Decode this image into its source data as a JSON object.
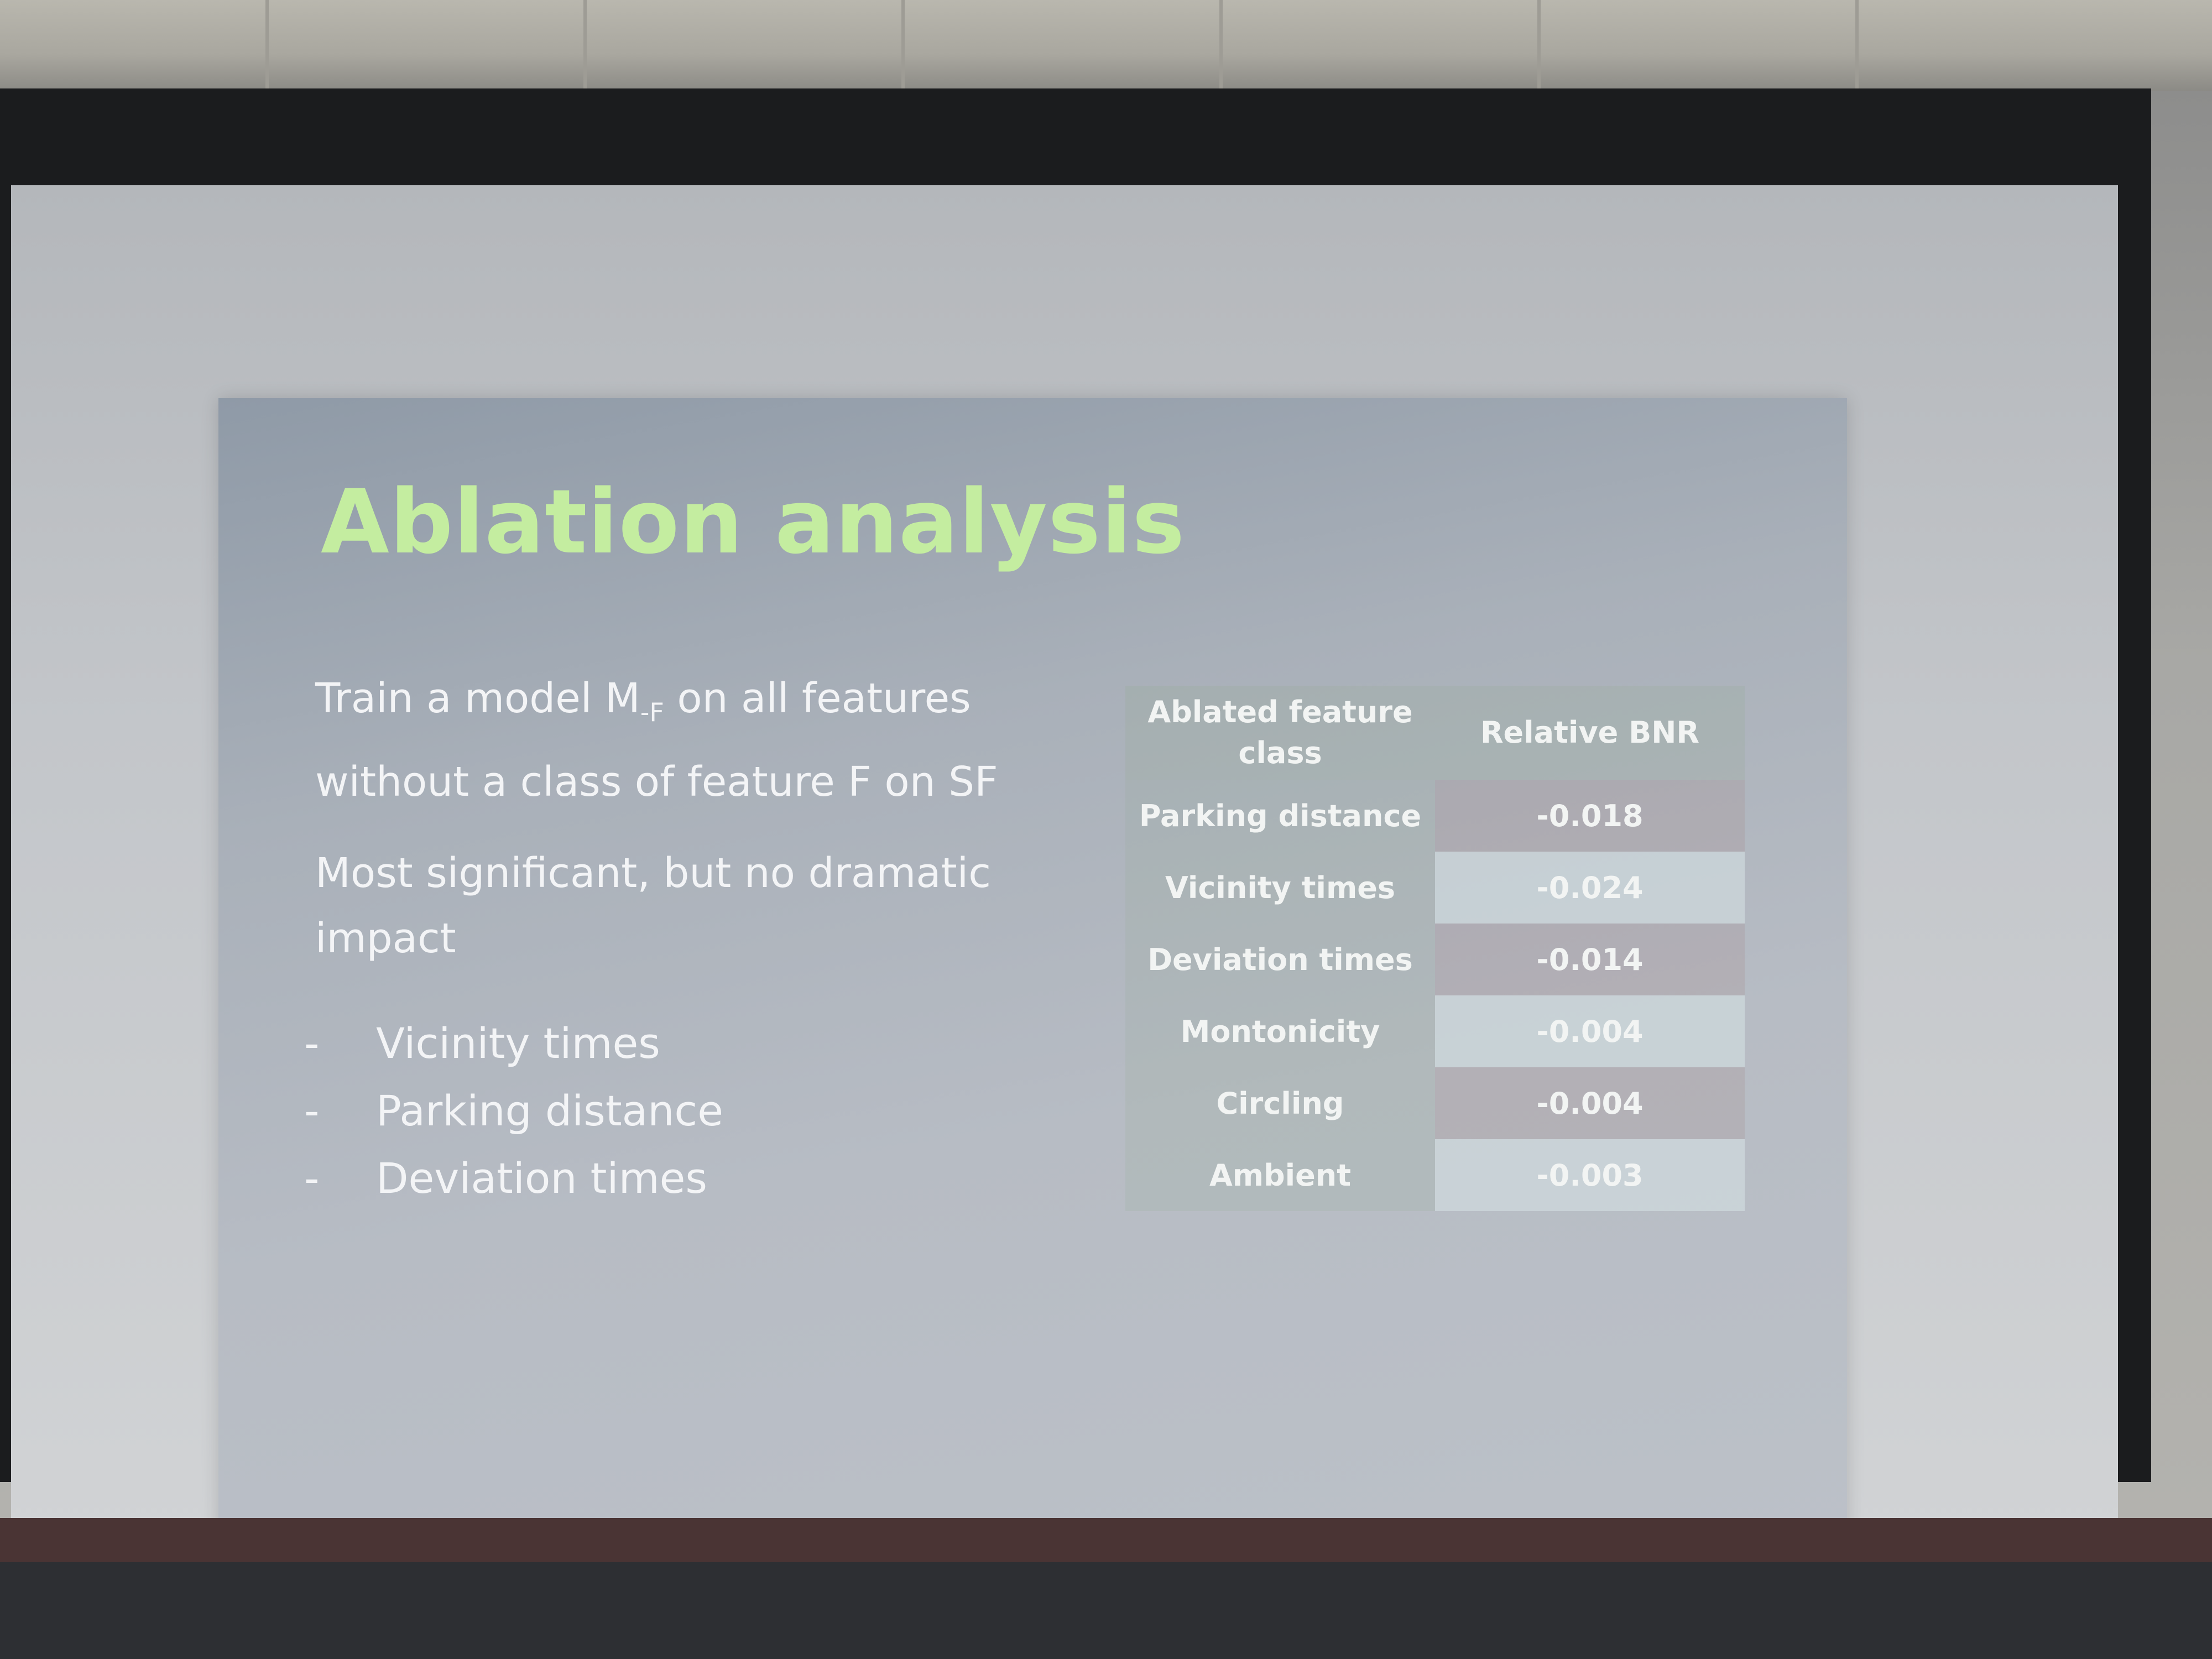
{
  "slide": {
    "title": "Ablation analysis",
    "para1_line1_pre": "Train a model M",
    "para1_sub": "-F",
    "para1_line1_post": " on all features",
    "para1_line2": "without a class of feature F on SF",
    "para2": "Most significant, but no dramatic impact",
    "bullet_marker": "-",
    "bullets": [
      "Vicinity times",
      "Parking distance",
      "Deviation times"
    ]
  },
  "table": {
    "headers": [
      "Ablated feature class",
      "Relative BNR"
    ],
    "rows": [
      {
        "feature": "Parking distance",
        "value": "-0.018"
      },
      {
        "feature": "Vicinity times",
        "value": "-0.024"
      },
      {
        "feature": "Deviation times",
        "value": "-0.014"
      },
      {
        "feature": "Montonicity",
        "value": "-0.004"
      },
      {
        "feature": "Circling",
        "value": "-0.004"
      },
      {
        "feature": "Ambient",
        "value": "-0.003"
      }
    ]
  },
  "colors": {
    "title": "#c4eda0",
    "text": "#f3f4f6"
  }
}
